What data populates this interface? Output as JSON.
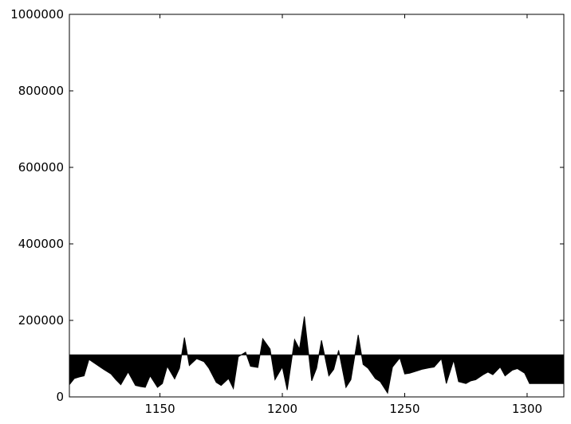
{
  "chart_data": {
    "type": "area",
    "title": "",
    "xlabel": "",
    "ylabel": "",
    "xlim": [
      1113,
      1315
    ],
    "ylim": [
      0,
      1000000
    ],
    "xticks": [
      1150,
      1200,
      1250,
      1300
    ],
    "xtick_labels": [
      "1150",
      "1200",
      "1250",
      "1300"
    ],
    "yticks": [
      0,
      200000,
      400000,
      600000,
      800000,
      1000000
    ],
    "ytick_labels": [
      "0",
      "200000",
      "400000",
      "600000",
      "800000",
      "1000000"
    ],
    "grid": false,
    "legend": "none",
    "colors": {
      "fill": "#000000",
      "background": "#ffffff",
      "axes": "#000000"
    },
    "baseline": 110000,
    "series": [
      {
        "x": [
          1113,
          1115,
          1117,
          1119,
          1121,
          1124,
          1127,
          1130,
          1132,
          1134,
          1137,
          1140,
          1142,
          1144,
          1146,
          1149,
          1151,
          1153,
          1156,
          1158,
          1160,
          1162,
          1165,
          1168,
          1170,
          1173,
          1175,
          1178,
          1180,
          1182,
          1185,
          1187,
          1190,
          1192,
          1195,
          1197,
          1200,
          1202,
          1205,
          1207,
          1209,
          1212,
          1214,
          1216,
          1219,
          1221,
          1223,
          1226,
          1228,
          1231,
          1233,
          1235,
          1238,
          1240,
          1243,
          1245,
          1248,
          1250,
          1252,
          1255,
          1257,
          1260,
          1262,
          1265,
          1267,
          1270,
          1272,
          1275,
          1277,
          1279,
          1282,
          1284,
          1286,
          1289,
          1291,
          1294,
          1296,
          1299,
          1301,
          1303,
          1305,
          1308,
          1310,
          1313,
          1315
        ],
        "y": [
          32000,
          48000,
          52000,
          55000,
          98000,
          85000,
          72000,
          60000,
          45000,
          32000,
          65000,
          30000,
          27000,
          25000,
          55000,
          25000,
          35000,
          80000,
          47000,
          75000,
          155000,
          82000,
          100000,
          92000,
          75000,
          38000,
          30000,
          48000,
          22000,
          105000,
          117000,
          80000,
          77000,
          152000,
          125000,
          45000,
          78000,
          18000,
          150000,
          125000,
          210000,
          42000,
          75000,
          148000,
          55000,
          72000,
          122000,
          25000,
          45000,
          162000,
          85000,
          75000,
          48000,
          40000,
          10000,
          78000,
          102000,
          60000,
          62000,
          68000,
          72000,
          76000,
          78000,
          100000,
          35000,
          96000,
          40000,
          35000,
          42000,
          45000,
          58000,
          65000,
          58000,
          78000,
          55000,
          70000,
          74000,
          62000,
          35000,
          35000,
          35000,
          35000,
          35000,
          35000,
          35000
        ]
      }
    ]
  }
}
